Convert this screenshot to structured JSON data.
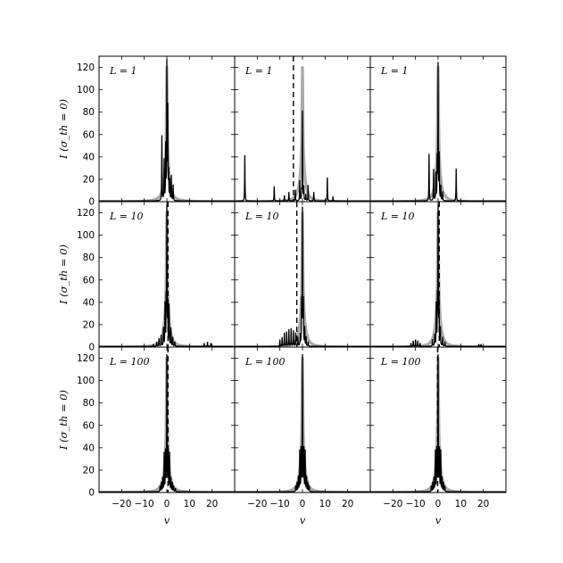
{
  "chart_data": {
    "type": "line",
    "layout": {
      "rows": 3,
      "cols": 3,
      "sharex": true,
      "sharey": true
    },
    "xlabel": "v",
    "ylabel": "I (σ_th = 0)",
    "xlim": [
      -30,
      30
    ],
    "ylim": [
      0,
      130
    ],
    "xticks": [
      -20,
      -10,
      0,
      10,
      20
    ],
    "yticks": [
      0,
      20,
      40,
      60,
      80,
      100,
      120
    ],
    "reference_series": {
      "name": "",
      "color": "#aaaaaa",
      "description": "gray central profile peaking near 121 at v = 0"
    },
    "main_series_color": "#000000",
    "panels": [
      {
        "row": 0,
        "col": 0,
        "label": "L = 1",
        "dashed_v": null,
        "spikes": [
          [
            -2.2,
            58
          ],
          [
            -1.2,
            36
          ],
          [
            -0.5,
            48
          ],
          [
            0.0,
            121
          ],
          [
            0.4,
            80
          ],
          [
            0.8,
            24
          ],
          [
            1.3,
            18
          ],
          [
            2.0,
            22
          ],
          [
            2.8,
            14
          ]
        ]
      },
      {
        "row": 0,
        "col": 1,
        "label": "L = 1",
        "dashed_v": -4.0,
        "spikes": [
          [
            -25.5,
            41
          ],
          [
            -12.5,
            13
          ],
          [
            -8.0,
            5
          ],
          [
            -6.0,
            8
          ],
          [
            -3.2,
            10
          ],
          [
            -1.2,
            18
          ],
          [
            -0.4,
            8
          ],
          [
            0.0,
            80
          ],
          [
            0.6,
            12
          ],
          [
            1.5,
            6
          ],
          [
            2.5,
            14
          ],
          [
            5.0,
            8
          ],
          [
            11.0,
            21
          ],
          [
            13.5,
            4
          ]
        ]
      },
      {
        "row": 0,
        "col": 2,
        "label": "L = 1",
        "dashed_v": null,
        "spikes": [
          [
            -4.0,
            42
          ],
          [
            -2.0,
            28
          ],
          [
            -1.0,
            24
          ],
          [
            -0.4,
            36
          ],
          [
            0.0,
            121
          ],
          [
            0.5,
            40
          ],
          [
            1.2,
            13
          ],
          [
            2.0,
            8
          ],
          [
            8.0,
            29
          ]
        ]
      },
      {
        "row": 1,
        "col": 0,
        "label": "L = 10",
        "dashed_v": 0.5,
        "spikes": [
          [
            -6.0,
            2
          ],
          [
            -4.5,
            4
          ],
          [
            -3.5,
            7
          ],
          [
            -2.5,
            10
          ],
          [
            -1.5,
            16
          ],
          [
            -0.8,
            37
          ],
          [
            -0.3,
            38
          ],
          [
            0.0,
            121
          ],
          [
            0.4,
            36
          ],
          [
            1.0,
            36
          ],
          [
            1.8,
            16
          ],
          [
            2.6,
            8
          ],
          [
            3.5,
            4
          ],
          [
            16.5,
            3
          ],
          [
            18.0,
            4
          ],
          [
            19.5,
            3
          ]
        ]
      },
      {
        "row": 1,
        "col": 1,
        "label": "L = 10",
        "dashed_v": -2.5,
        "spikes": [
          [
            -10.0,
            6
          ],
          [
            -9.0,
            8
          ],
          [
            -8.0,
            12
          ],
          [
            -7.0,
            13
          ],
          [
            -6.0,
            15
          ],
          [
            -5.0,
            16
          ],
          [
            -4.0,
            14
          ],
          [
            -3.0,
            12
          ],
          [
            -2.0,
            8
          ],
          [
            -1.0,
            10
          ],
          [
            -0.4,
            38
          ],
          [
            0.0,
            121
          ],
          [
            0.4,
            38
          ],
          [
            1.0,
            16
          ],
          [
            1.6,
            8
          ],
          [
            2.5,
            4
          ]
        ]
      },
      {
        "row": 1,
        "col": 2,
        "label": "L = 10",
        "dashed_v": 0.5,
        "spikes": [
          [
            -12.0,
            3
          ],
          [
            -11.0,
            5
          ],
          [
            -10.0,
            6
          ],
          [
            -9.0,
            5
          ],
          [
            -8.0,
            3
          ],
          [
            -2.5,
            6
          ],
          [
            -1.5,
            10
          ],
          [
            -0.8,
            37
          ],
          [
            -0.3,
            38
          ],
          [
            0.0,
            121
          ],
          [
            0.4,
            38
          ],
          [
            1.0,
            16
          ],
          [
            2.0,
            8
          ],
          [
            3.0,
            4
          ],
          [
            18.0,
            2
          ],
          [
            19.0,
            2
          ]
        ]
      },
      {
        "row": 2,
        "col": 0,
        "label": "L = 100",
        "dashed_v": 0.5,
        "spikes": [
          [
            -3.0,
            5
          ],
          [
            -2.4,
            8
          ],
          [
            -1.8,
            12
          ],
          [
            -1.2,
            34
          ],
          [
            -0.6,
            35
          ],
          [
            0.0,
            121
          ],
          [
            0.6,
            35
          ],
          [
            1.2,
            34
          ],
          [
            1.8,
            12
          ],
          [
            2.4,
            8
          ],
          [
            3.0,
            5
          ],
          [
            3.8,
            3
          ]
        ]
      },
      {
        "row": 2,
        "col": 1,
        "label": "L = 100",
        "dashed_v": null,
        "spikes": [
          [
            -3.0,
            5
          ],
          [
            -2.4,
            8
          ],
          [
            -1.8,
            13
          ],
          [
            -1.2,
            36
          ],
          [
            -0.6,
            37
          ],
          [
            0.0,
            121
          ],
          [
            0.6,
            37
          ],
          [
            1.2,
            36
          ],
          [
            1.8,
            13
          ],
          [
            2.4,
            8
          ],
          [
            3.0,
            5
          ]
        ]
      },
      {
        "row": 2,
        "col": 2,
        "label": "L = 100",
        "dashed_v": -0.2,
        "spikes": [
          [
            -3.0,
            5
          ],
          [
            -2.4,
            8
          ],
          [
            -1.8,
            12
          ],
          [
            -1.2,
            36
          ],
          [
            -0.6,
            37
          ],
          [
            0.0,
            121
          ],
          [
            0.6,
            37
          ],
          [
            1.2,
            36
          ],
          [
            1.8,
            12
          ],
          [
            2.4,
            8
          ],
          [
            3.0,
            5
          ]
        ]
      }
    ]
  }
}
